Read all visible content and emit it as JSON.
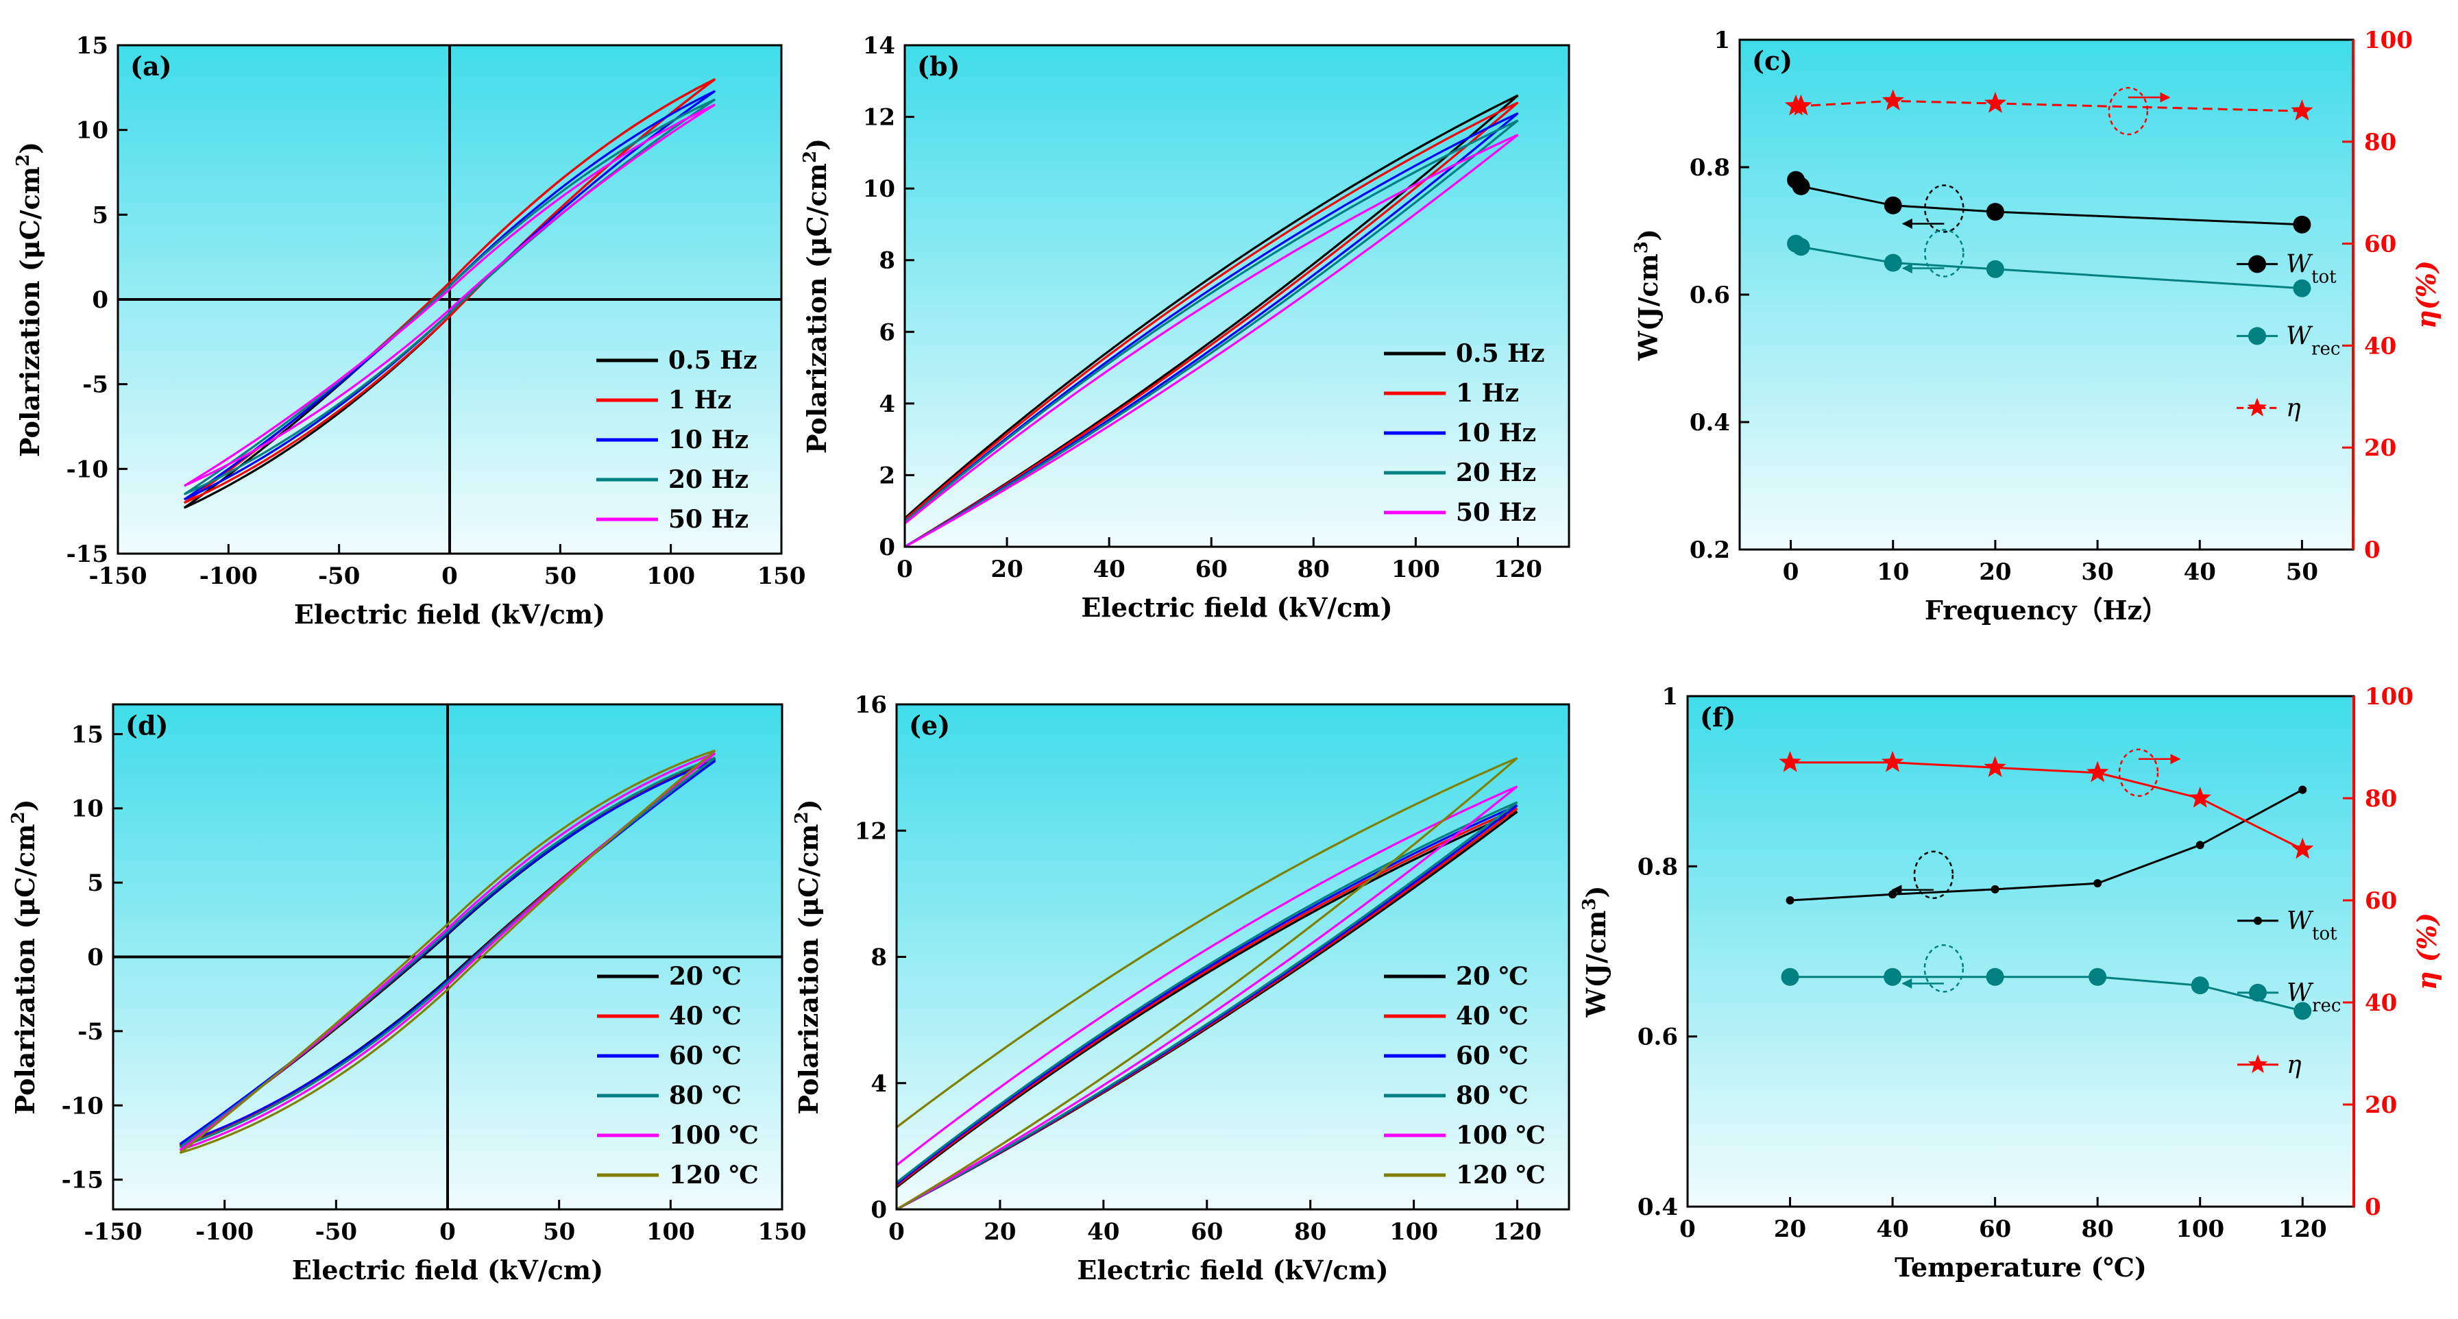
{
  "colors": {
    "bg_top": "#40dcea",
    "bg_bottom": "#f0fcfd",
    "red": "#ff0000",
    "black": "#000000",
    "teal": "#008080"
  },
  "chart_data": [
    {
      "panel": "(a)",
      "type": "line",
      "xlabel": "Electric field (kV/cm)",
      "ylabel": "Polarization (μC/cm²)",
      "xlim": [
        -150,
        150
      ],
      "ylim": [
        -15,
        15
      ],
      "xticks": [
        -150,
        -100,
        -50,
        0,
        50,
        100,
        150
      ],
      "yticks": [
        -15,
        -10,
        -5,
        0,
        5,
        10,
        15
      ],
      "zero_lines": true,
      "loop_kind": "bipolar",
      "e_max": 120,
      "legend_position": "bottom-right",
      "series": [
        {
          "name": "0.5 Hz",
          "color": "#000000",
          "p_max": 13.0,
          "p_min": -12.3,
          "p_r": 1.0
        },
        {
          "name": "1 Hz",
          "color": "#ff0000",
          "p_max": 13.0,
          "p_min": -12.0,
          "p_r": 1.0
        },
        {
          "name": "10 Hz",
          "color": "#0000ff",
          "p_max": 12.3,
          "p_min": -11.8,
          "p_r": 0.8
        },
        {
          "name": "20 Hz",
          "color": "#008080",
          "p_max": 11.8,
          "p_min": -11.5,
          "p_r": 0.8
        },
        {
          "name": "50 Hz",
          "color": "#ff00ff",
          "p_max": 11.5,
          "p_min": -11.0,
          "p_r": 0.6
        }
      ]
    },
    {
      "panel": "(b)",
      "type": "line",
      "xlabel": "Electric field (kV/cm)",
      "ylabel": "Polarization (μC/cm²)",
      "xlim": [
        0,
        130
      ],
      "ylim": [
        0,
        14
      ],
      "xticks": [
        0,
        20,
        40,
        60,
        80,
        100,
        120
      ],
      "yticks": [
        0,
        2,
        4,
        6,
        8,
        10,
        12,
        14
      ],
      "zero_lines": false,
      "loop_kind": "unipolar",
      "e_max": 120,
      "legend_position": "bottom-right",
      "series": [
        {
          "name": "0.5 Hz",
          "color": "#000000",
          "p_max": 12.6,
          "p_r": 0.8
        },
        {
          "name": "1 Hz",
          "color": "#ff0000",
          "p_max": 12.4,
          "p_r": 0.75
        },
        {
          "name": "10 Hz",
          "color": "#0000ff",
          "p_max": 12.1,
          "p_r": 0.7
        },
        {
          "name": "20 Hz",
          "color": "#008080",
          "p_max": 11.9,
          "p_r": 0.7
        },
        {
          "name": "50 Hz",
          "color": "#ff00ff",
          "p_max": 11.5,
          "p_r": 0.65
        }
      ]
    },
    {
      "panel": "(c)",
      "type": "line",
      "xlabel": "Frequency（Hz）",
      "ylabel": "W(J/cm³)",
      "ylabel_right": "η(%)",
      "xlim": [
        -5,
        55
      ],
      "ylim": [
        0.2,
        1.0
      ],
      "ylim_right": [
        0,
        100
      ],
      "xticks": [
        0,
        10,
        20,
        30,
        40,
        50
      ],
      "yticks": [
        0.2,
        0.4,
        0.6,
        0.8,
        1.0
      ],
      "yticks_right": [
        0,
        20,
        40,
        60,
        80,
        100
      ],
      "x": [
        0.5,
        1,
        10,
        20,
        50
      ],
      "legend_position": "center-right",
      "series": [
        {
          "name": "W",
          "sub": "tot",
          "axis": "left",
          "color": "#000000",
          "marker": "circle",
          "marker_size": 13,
          "values": [
            0.78,
            0.77,
            0.74,
            0.73,
            0.71
          ]
        },
        {
          "name": "W",
          "sub": "rec",
          "axis": "left",
          "color": "#008080",
          "marker": "circle",
          "marker_size": 13,
          "values": [
            0.68,
            0.675,
            0.65,
            0.64,
            0.61
          ]
        },
        {
          "name": "η",
          "axis": "right",
          "color": "#ff0000",
          "marker": "star",
          "dash": true,
          "values": [
            87,
            87,
            88,
            87.5,
            86
          ]
        }
      ]
    },
    {
      "panel": "(d)",
      "type": "line",
      "xlabel": "Electric field (kV/cm)",
      "ylabel": "Polarization (μC/cm²)",
      "xlim": [
        -150,
        150
      ],
      "ylim": [
        -17,
        17
      ],
      "xticks": [
        -150,
        -100,
        -50,
        0,
        50,
        100,
        150
      ],
      "yticks": [
        -15,
        -10,
        -5,
        0,
        5,
        10,
        15
      ],
      "zero_lines": true,
      "loop_kind": "bipolar",
      "e_max": 120,
      "legend_position": "bottom-right",
      "series": [
        {
          "name": "20 ℃",
          "color": "#000000",
          "p_max": 13.3,
          "p_min": -12.7,
          "p_r": 1.5
        },
        {
          "name": "40 ℃",
          "color": "#ff0000",
          "p_max": 13.4,
          "p_min": -12.7,
          "p_r": 1.6
        },
        {
          "name": "60 ℃",
          "color": "#0000ff",
          "p_max": 13.2,
          "p_min": -12.6,
          "p_r": 1.6
        },
        {
          "name": "80 ℃",
          "color": "#008080",
          "p_max": 13.4,
          "p_min": -12.8,
          "p_r": 1.7
        },
        {
          "name": "100 ℃",
          "color": "#ff00ff",
          "p_max": 13.7,
          "p_min": -13.0,
          "p_r": 1.9
        },
        {
          "name": "120 ℃",
          "color": "#808000",
          "p_max": 13.9,
          "p_min": -13.2,
          "p_r": 2.2
        }
      ]
    },
    {
      "panel": "(e)",
      "type": "line",
      "xlabel": "Electric field (kV/cm)",
      "ylabel": "Polarization (μC/cm²)",
      "xlim": [
        0,
        130
      ],
      "ylim": [
        0,
        16
      ],
      "xticks": [
        0,
        20,
        40,
        60,
        80,
        100,
        120
      ],
      "yticks": [
        0,
        4,
        8,
        12,
        16
      ],
      "zero_lines": false,
      "loop_kind": "unipolar",
      "e_max": 120,
      "legend_position": "bottom-right",
      "series": [
        {
          "name": "20 ℃",
          "color": "#000000",
          "p_max": 12.6,
          "p_r": 0.7
        },
        {
          "name": "40 ℃",
          "color": "#ff0000",
          "p_max": 12.7,
          "p_r": 0.75
        },
        {
          "name": "60 ℃",
          "color": "#0000ff",
          "p_max": 12.8,
          "p_r": 0.8
        },
        {
          "name": "80 ℃",
          "color": "#008080",
          "p_max": 12.9,
          "p_r": 0.85
        },
        {
          "name": "100 ℃",
          "color": "#ff00ff",
          "p_max": 13.4,
          "p_r": 1.4
        },
        {
          "name": "120 ℃",
          "color": "#808000",
          "p_max": 14.3,
          "p_r": 2.6
        }
      ]
    },
    {
      "panel": "(f)",
      "type": "line",
      "xlabel": "Temperature (℃)",
      "ylabel": "W(J/cm³)",
      "ylabel_right": "η (%)",
      "xlim": [
        0,
        130
      ],
      "ylim": [
        0.4,
        1.0
      ],
      "ylim_right": [
        0,
        100
      ],
      "xticks": [
        0,
        20,
        40,
        60,
        80,
        100,
        120
      ],
      "yticks": [
        0.4,
        0.6,
        0.8,
        1.0
      ],
      "yticks_right": [
        0,
        20,
        40,
        60,
        80,
        100
      ],
      "x": [
        20,
        40,
        60,
        80,
        100,
        120
      ],
      "legend_position": "center-right",
      "series": [
        {
          "name": "W",
          "sub": "tot",
          "axis": "left",
          "color": "#000000",
          "marker": "circle",
          "marker_size": 6,
          "values": [
            0.76,
            0.767,
            0.773,
            0.78,
            0.825,
            0.89
          ]
        },
        {
          "name": "W",
          "sub": "rec",
          "axis": "left",
          "color": "#008080",
          "marker": "circle",
          "marker_size": 13,
          "values": [
            0.67,
            0.67,
            0.67,
            0.67,
            0.66,
            0.63
          ]
        },
        {
          "name": "η",
          "axis": "right",
          "color": "#ff0000",
          "marker": "star",
          "dash": false,
          "values": [
            87,
            87,
            86,
            85,
            80,
            70
          ]
        }
      ]
    }
  ]
}
